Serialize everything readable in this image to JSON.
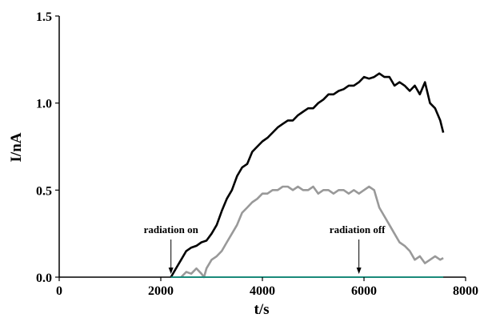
{
  "chart_data": {
    "type": "line",
    "xlabel": "t/s",
    "ylabel": "I/nA",
    "xlim": [
      0,
      8000
    ],
    "ylim": [
      0,
      1.5
    ],
    "x_ticks": [
      0,
      2000,
      4000,
      6000,
      8000
    ],
    "x_tick_labels": [
      "0",
      "2000",
      "4000",
      "6000",
      "8000"
    ],
    "y_ticks": [
      0,
      0.5,
      1.0,
      1.5
    ],
    "y_tick_labels": [
      "0.0",
      "0.5",
      "1.0",
      "1.5"
    ],
    "grid": false,
    "legend": "none",
    "series": [
      {
        "color": "#000000",
        "x": [
          2200,
          2300,
          2400,
          2500,
          2600,
          2700,
          2800,
          2900,
          3000,
          3100,
          3200,
          3300,
          3400,
          3500,
          3600,
          3700,
          3800,
          3900,
          4000,
          4100,
          4200,
          4300,
          4400,
          4500,
          4600,
          4700,
          4800,
          4900,
          5000,
          5100,
          5200,
          5300,
          5400,
          5500,
          5600,
          5700,
          5800,
          5900,
          6000,
          6100,
          6200,
          6300,
          6400,
          6500,
          6600,
          6700,
          6800,
          6900,
          7000,
          7100,
          7200,
          7300,
          7400,
          7500,
          7560
        ],
        "y": [
          0.0,
          0.05,
          0.1,
          0.15,
          0.17,
          0.18,
          0.2,
          0.21,
          0.25,
          0.3,
          0.38,
          0.45,
          0.5,
          0.58,
          0.63,
          0.65,
          0.72,
          0.75,
          0.78,
          0.8,
          0.83,
          0.86,
          0.88,
          0.9,
          0.9,
          0.93,
          0.95,
          0.97,
          0.97,
          1.0,
          1.02,
          1.05,
          1.05,
          1.07,
          1.08,
          1.1,
          1.1,
          1.12,
          1.15,
          1.14,
          1.15,
          1.17,
          1.15,
          1.15,
          1.1,
          1.12,
          1.1,
          1.07,
          1.1,
          1.05,
          1.12,
          1.0,
          0.97,
          0.9,
          0.83
        ]
      },
      {
        "color": "#999999",
        "x": [
          2400,
          2500,
          2600,
          2700,
          2800,
          2850,
          2900,
          3000,
          3100,
          3200,
          3300,
          3400,
          3500,
          3600,
          3700,
          3800,
          3900,
          4000,
          4100,
          4200,
          4300,
          4400,
          4500,
          4600,
          4700,
          4800,
          4900,
          5000,
          5100,
          5200,
          5300,
          5400,
          5500,
          5600,
          5700,
          5800,
          5900,
          6000,
          6100,
          6200,
          6300,
          6400,
          6500,
          6600,
          6700,
          6800,
          6900,
          7000,
          7100,
          7200,
          7300,
          7400,
          7500,
          7560
        ],
        "y": [
          0.0,
          0.03,
          0.02,
          0.05,
          0.02,
          0.0,
          0.05,
          0.1,
          0.12,
          0.15,
          0.2,
          0.25,
          0.3,
          0.37,
          0.4,
          0.43,
          0.45,
          0.48,
          0.48,
          0.5,
          0.5,
          0.52,
          0.52,
          0.5,
          0.52,
          0.5,
          0.5,
          0.52,
          0.48,
          0.5,
          0.5,
          0.48,
          0.5,
          0.5,
          0.48,
          0.5,
          0.48,
          0.5,
          0.52,
          0.5,
          0.4,
          0.35,
          0.3,
          0.25,
          0.2,
          0.18,
          0.15,
          0.1,
          0.12,
          0.08,
          0.1,
          0.12,
          0.1,
          0.11
        ]
      },
      {
        "color": "#1a8a7a",
        "x": [
          2200,
          7560
        ],
        "y": [
          0.0,
          0.0
        ]
      }
    ],
    "annotations": [
      {
        "text": "radiation on",
        "x": 2200,
        "y": 0.0
      },
      {
        "text": "radiation off",
        "x": 5900,
        "y": 0.0
      }
    ]
  }
}
